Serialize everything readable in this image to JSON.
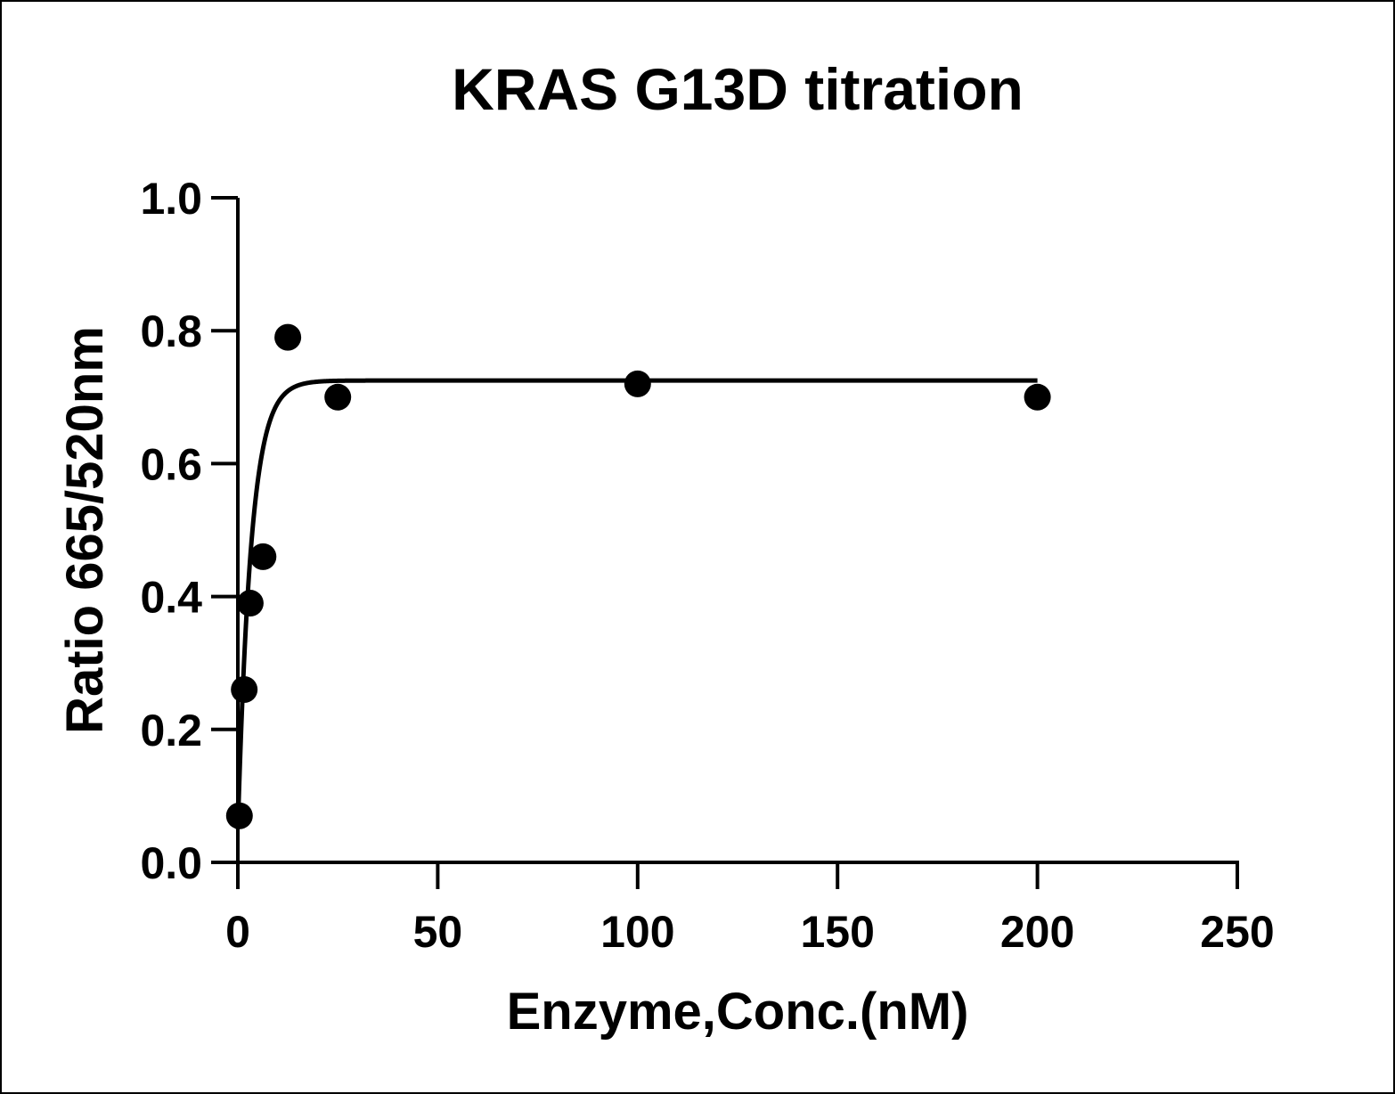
{
  "chart_data": {
    "type": "scatter",
    "title": "KRAS G13D titration",
    "xlabel": "Enzyme,Conc.(nM)",
    "ylabel": "Ratio 665/520nm",
    "xlim": [
      0,
      250
    ],
    "ylim": [
      0,
      1.0
    ],
    "x_ticks": [
      0,
      50,
      100,
      150,
      200,
      250
    ],
    "x_tick_labels": [
      "0",
      "50",
      "100",
      "150",
      "200",
      "250"
    ],
    "y_ticks": [
      0.0,
      0.2,
      0.4,
      0.6,
      0.8,
      1.0
    ],
    "y_tick_labels": [
      "0.0",
      "0.2",
      "0.4",
      "0.6",
      "0.8",
      "1.0"
    ],
    "grid": false,
    "series": [
      {
        "kind": "points",
        "x": [
          0.4,
          1.6,
          3.1,
          6.3,
          12.5,
          25,
          100,
          200
        ],
        "y": [
          0.07,
          0.26,
          0.39,
          0.46,
          0.79,
          0.7,
          0.72,
          0.7
        ]
      },
      {
        "kind": "fit",
        "model": "one-phase association",
        "top": 0.725,
        "bottom": 0.05,
        "k": 0.3,
        "x_range": [
          0,
          200
        ]
      }
    ],
    "colors": {
      "marker": "#000000",
      "line": "#000000"
    }
  }
}
